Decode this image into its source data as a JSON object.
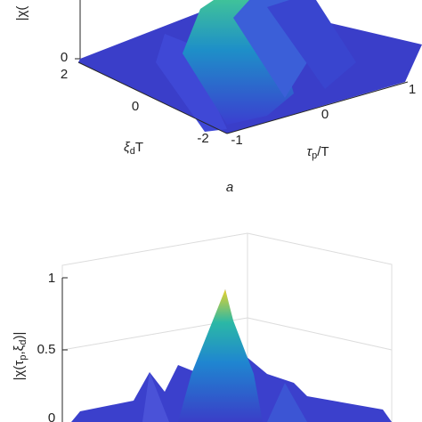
{
  "panel_a": {
    "z_label": "|χ(",
    "z_ticks": [
      "0"
    ],
    "y_ticks": [
      "2",
      "0",
      "-2"
    ],
    "y_label": [
      "ξ",
      "d",
      "T"
    ],
    "x_ticks": [
      "-1",
      "0",
      "1"
    ],
    "x_label": [
      "τ",
      "p",
      "/T"
    ],
    "caption": "a"
  },
  "panel_b": {
    "z_ticks": [
      "1",
      "0.5",
      "0"
    ],
    "z_label": [
      "|χ(τ",
      "p",
      ",ξ",
      "d",
      ")|"
    ]
  }
}
